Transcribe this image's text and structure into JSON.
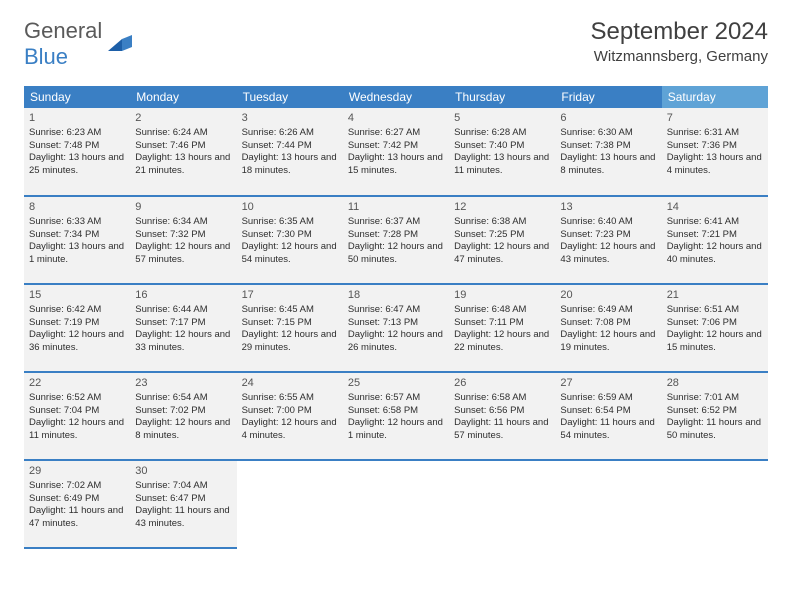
{
  "brand": {
    "part1": "General",
    "part2": "Blue"
  },
  "title": "September 2024",
  "location": "Witzmannsberg, Germany",
  "colors": {
    "header_bg": "#3a7fc4",
    "header_bg_sat": "#5fa3d6",
    "cell_bg": "#f2f2f2",
    "cell_border": "#3a7fc4",
    "text": "#2e2e2e",
    "title_text": "#404040"
  },
  "weekdays": [
    "Sunday",
    "Monday",
    "Tuesday",
    "Wednesday",
    "Thursday",
    "Friday",
    "Saturday"
  ],
  "rows": [
    [
      {
        "day": "1",
        "sunrise": "Sunrise: 6:23 AM",
        "sunset": "Sunset: 7:48 PM",
        "daylight": "Daylight: 13 hours and 25 minutes."
      },
      {
        "day": "2",
        "sunrise": "Sunrise: 6:24 AM",
        "sunset": "Sunset: 7:46 PM",
        "daylight": "Daylight: 13 hours and 21 minutes."
      },
      {
        "day": "3",
        "sunrise": "Sunrise: 6:26 AM",
        "sunset": "Sunset: 7:44 PM",
        "daylight": "Daylight: 13 hours and 18 minutes."
      },
      {
        "day": "4",
        "sunrise": "Sunrise: 6:27 AM",
        "sunset": "Sunset: 7:42 PM",
        "daylight": "Daylight: 13 hours and 15 minutes."
      },
      {
        "day": "5",
        "sunrise": "Sunrise: 6:28 AM",
        "sunset": "Sunset: 7:40 PM",
        "daylight": "Daylight: 13 hours and 11 minutes."
      },
      {
        "day": "6",
        "sunrise": "Sunrise: 6:30 AM",
        "sunset": "Sunset: 7:38 PM",
        "daylight": "Daylight: 13 hours and 8 minutes."
      },
      {
        "day": "7",
        "sunrise": "Sunrise: 6:31 AM",
        "sunset": "Sunset: 7:36 PM",
        "daylight": "Daylight: 13 hours and 4 minutes."
      }
    ],
    [
      {
        "day": "8",
        "sunrise": "Sunrise: 6:33 AM",
        "sunset": "Sunset: 7:34 PM",
        "daylight": "Daylight: 13 hours and 1 minute."
      },
      {
        "day": "9",
        "sunrise": "Sunrise: 6:34 AM",
        "sunset": "Sunset: 7:32 PM",
        "daylight": "Daylight: 12 hours and 57 minutes."
      },
      {
        "day": "10",
        "sunrise": "Sunrise: 6:35 AM",
        "sunset": "Sunset: 7:30 PM",
        "daylight": "Daylight: 12 hours and 54 minutes."
      },
      {
        "day": "11",
        "sunrise": "Sunrise: 6:37 AM",
        "sunset": "Sunset: 7:28 PM",
        "daylight": "Daylight: 12 hours and 50 minutes."
      },
      {
        "day": "12",
        "sunrise": "Sunrise: 6:38 AM",
        "sunset": "Sunset: 7:25 PM",
        "daylight": "Daylight: 12 hours and 47 minutes."
      },
      {
        "day": "13",
        "sunrise": "Sunrise: 6:40 AM",
        "sunset": "Sunset: 7:23 PM",
        "daylight": "Daylight: 12 hours and 43 minutes."
      },
      {
        "day": "14",
        "sunrise": "Sunrise: 6:41 AM",
        "sunset": "Sunset: 7:21 PM",
        "daylight": "Daylight: 12 hours and 40 minutes."
      }
    ],
    [
      {
        "day": "15",
        "sunrise": "Sunrise: 6:42 AM",
        "sunset": "Sunset: 7:19 PM",
        "daylight": "Daylight: 12 hours and 36 minutes."
      },
      {
        "day": "16",
        "sunrise": "Sunrise: 6:44 AM",
        "sunset": "Sunset: 7:17 PM",
        "daylight": "Daylight: 12 hours and 33 minutes."
      },
      {
        "day": "17",
        "sunrise": "Sunrise: 6:45 AM",
        "sunset": "Sunset: 7:15 PM",
        "daylight": "Daylight: 12 hours and 29 minutes."
      },
      {
        "day": "18",
        "sunrise": "Sunrise: 6:47 AM",
        "sunset": "Sunset: 7:13 PM",
        "daylight": "Daylight: 12 hours and 26 minutes."
      },
      {
        "day": "19",
        "sunrise": "Sunrise: 6:48 AM",
        "sunset": "Sunset: 7:11 PM",
        "daylight": "Daylight: 12 hours and 22 minutes."
      },
      {
        "day": "20",
        "sunrise": "Sunrise: 6:49 AM",
        "sunset": "Sunset: 7:08 PM",
        "daylight": "Daylight: 12 hours and 19 minutes."
      },
      {
        "day": "21",
        "sunrise": "Sunrise: 6:51 AM",
        "sunset": "Sunset: 7:06 PM",
        "daylight": "Daylight: 12 hours and 15 minutes."
      }
    ],
    [
      {
        "day": "22",
        "sunrise": "Sunrise: 6:52 AM",
        "sunset": "Sunset: 7:04 PM",
        "daylight": "Daylight: 12 hours and 11 minutes."
      },
      {
        "day": "23",
        "sunrise": "Sunrise: 6:54 AM",
        "sunset": "Sunset: 7:02 PM",
        "daylight": "Daylight: 12 hours and 8 minutes."
      },
      {
        "day": "24",
        "sunrise": "Sunrise: 6:55 AM",
        "sunset": "Sunset: 7:00 PM",
        "daylight": "Daylight: 12 hours and 4 minutes."
      },
      {
        "day": "25",
        "sunrise": "Sunrise: 6:57 AM",
        "sunset": "Sunset: 6:58 PM",
        "daylight": "Daylight: 12 hours and 1 minute."
      },
      {
        "day": "26",
        "sunrise": "Sunrise: 6:58 AM",
        "sunset": "Sunset: 6:56 PM",
        "daylight": "Daylight: 11 hours and 57 minutes."
      },
      {
        "day": "27",
        "sunrise": "Sunrise: 6:59 AM",
        "sunset": "Sunset: 6:54 PM",
        "daylight": "Daylight: 11 hours and 54 minutes."
      },
      {
        "day": "28",
        "sunrise": "Sunrise: 7:01 AM",
        "sunset": "Sunset: 6:52 PM",
        "daylight": "Daylight: 11 hours and 50 minutes."
      }
    ],
    [
      {
        "day": "29",
        "sunrise": "Sunrise: 7:02 AM",
        "sunset": "Sunset: 6:49 PM",
        "daylight": "Daylight: 11 hours and 47 minutes."
      },
      {
        "day": "30",
        "sunrise": "Sunrise: 7:04 AM",
        "sunset": "Sunset: 6:47 PM",
        "daylight": "Daylight: 11 hours and 43 minutes."
      },
      null,
      null,
      null,
      null,
      null
    ]
  ]
}
